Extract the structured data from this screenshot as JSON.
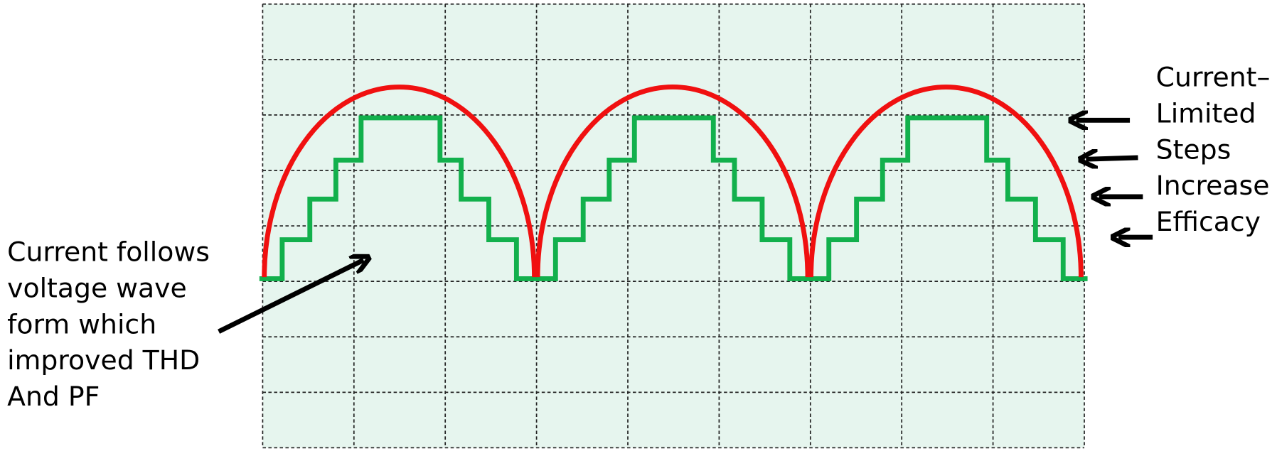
{
  "left_annotation": {
    "lines": [
      "Current follows",
      "voltage wave",
      "form which",
      "improved THD",
      "And PF"
    ]
  },
  "right_annotation": {
    "lines": [
      "Current–",
      "Limited",
      "Steps",
      "Increase",
      "Efficacy"
    ]
  }
}
